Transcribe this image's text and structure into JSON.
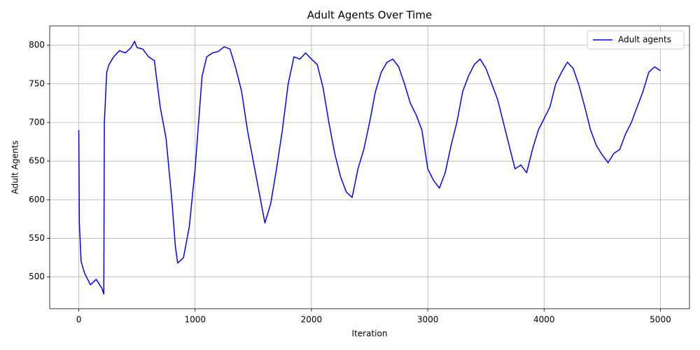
{
  "chart_data": {
    "type": "line",
    "title": "Adult Agents Over Time",
    "x_label": "Iteration",
    "y_label": "Adult Agents",
    "x": [
      0,
      5,
      20,
      50,
      100,
      150,
      200,
      215,
      220,
      240,
      260,
      300,
      350,
      400,
      450,
      480,
      500,
      550,
      600,
      650,
      700,
      750,
      800,
      830,
      850,
      900,
      950,
      1000,
      1030,
      1060,
      1100,
      1150,
      1200,
      1250,
      1300,
      1350,
      1400,
      1450,
      1500,
      1550,
      1600,
      1650,
      1700,
      1750,
      1800,
      1850,
      1900,
      1950,
      2000,
      2050,
      2100,
      2150,
      2200,
      2250,
      2300,
      2350,
      2400,
      2450,
      2500,
      2550,
      2600,
      2650,
      2700,
      2750,
      2800,
      2850,
      2900,
      2950,
      3000,
      3050,
      3100,
      3150,
      3200,
      3250,
      3300,
      3350,
      3400,
      3450,
      3500,
      3550,
      3600,
      3650,
      3700,
      3750,
      3800,
      3850,
      3900,
      3950,
      4000,
      4050,
      4100,
      4150,
      4200,
      4250,
      4300,
      4350,
      4400,
      4450,
      4500,
      4550,
      4600,
      4650,
      4700,
      4750,
      4800,
      4850,
      4900,
      4950,
      5000
    ],
    "series": [
      {
        "name": "Adult agents",
        "color": "#0000ff",
        "values": [
          690,
          570,
          520,
          505,
          490,
          497,
          485,
          478,
          700,
          765,
          775,
          785,
          793,
          790,
          797,
          805,
          797,
          795,
          785,
          780,
          720,
          680,
          600,
          540,
          518,
          525,
          565,
          640,
          700,
          760,
          785,
          790,
          792,
          798,
          795,
          770,
          740,
          690,
          650,
          610,
          570,
          595,
          640,
          690,
          750,
          785,
          782,
          790,
          782,
          775,
          745,
          700,
          660,
          630,
          610,
          603,
          640,
          665,
          700,
          740,
          765,
          778,
          782,
          772,
          750,
          725,
          710,
          690,
          640,
          625,
          615,
          635,
          670,
          700,
          740,
          760,
          775,
          782,
          770,
          750,
          730,
          700,
          670,
          640,
          645,
          635,
          665,
          690,
          705,
          720,
          750,
          765,
          778,
          770,
          748,
          720,
          690,
          670,
          658,
          648,
          660,
          665,
          685,
          700,
          720,
          740,
          765,
          772,
          767
        ]
      }
    ],
    "xlim": [
      -250,
      5250
    ],
    "ylim": [
      459,
      825
    ],
    "xticks": [
      0,
      1000,
      2000,
      3000,
      4000,
      5000
    ],
    "yticks": [
      500,
      550,
      600,
      650,
      700,
      750,
      800
    ],
    "grid": true,
    "legend": "upper right"
  }
}
